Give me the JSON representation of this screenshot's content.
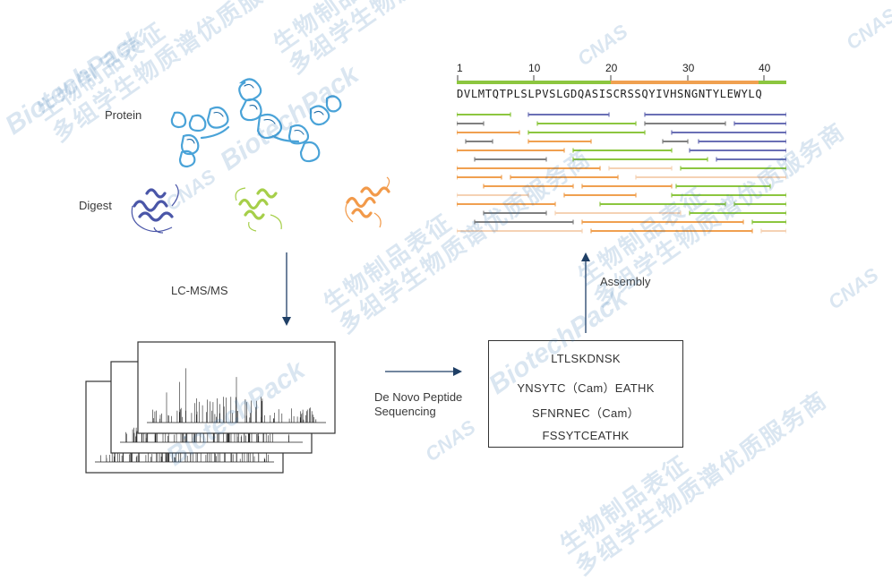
{
  "labels": {
    "protein": "Protein",
    "digest": "Digest",
    "lcms": "LC-MS/MS",
    "denovo_line1": "De Novo Peptide",
    "denovo_line2": "Sequencing",
    "assembly": "Assembly"
  },
  "peptides": [
    "LTLSKDNSK",
    "YNSYTC（Cam）EATHK",
    "SFNRNEC（Cam）",
    "FSSYTCEATHK"
  ],
  "alignment": {
    "ruler_ticks": [
      "1",
      "10",
      "20",
      "30",
      "40"
    ],
    "sequence": "DVLMTQTPLSLPVSLGDQASISCRSSQYIVHSNGNTYLEWYLQ"
  },
  "watermarks": {
    "cn_line1": "生物制品表征",
    "cn_line2": "多组学生物质谱优质服务商",
    "brand": "BiotechPack",
    "cnas": "CNAS"
  },
  "colors": {
    "green": "#8cc63f",
    "orange": "#f0a050",
    "blue": "#6a6fb5",
    "gray": "#808080",
    "peach": "#f5d2b4",
    "spectrum": "#222222",
    "arrow": "#1f3f66",
    "protein": "#4aa3d8",
    "digest_blue": "#4a56a8",
    "digest_green": "#a6cf4a",
    "digest_orange": "#f29a4a"
  }
}
